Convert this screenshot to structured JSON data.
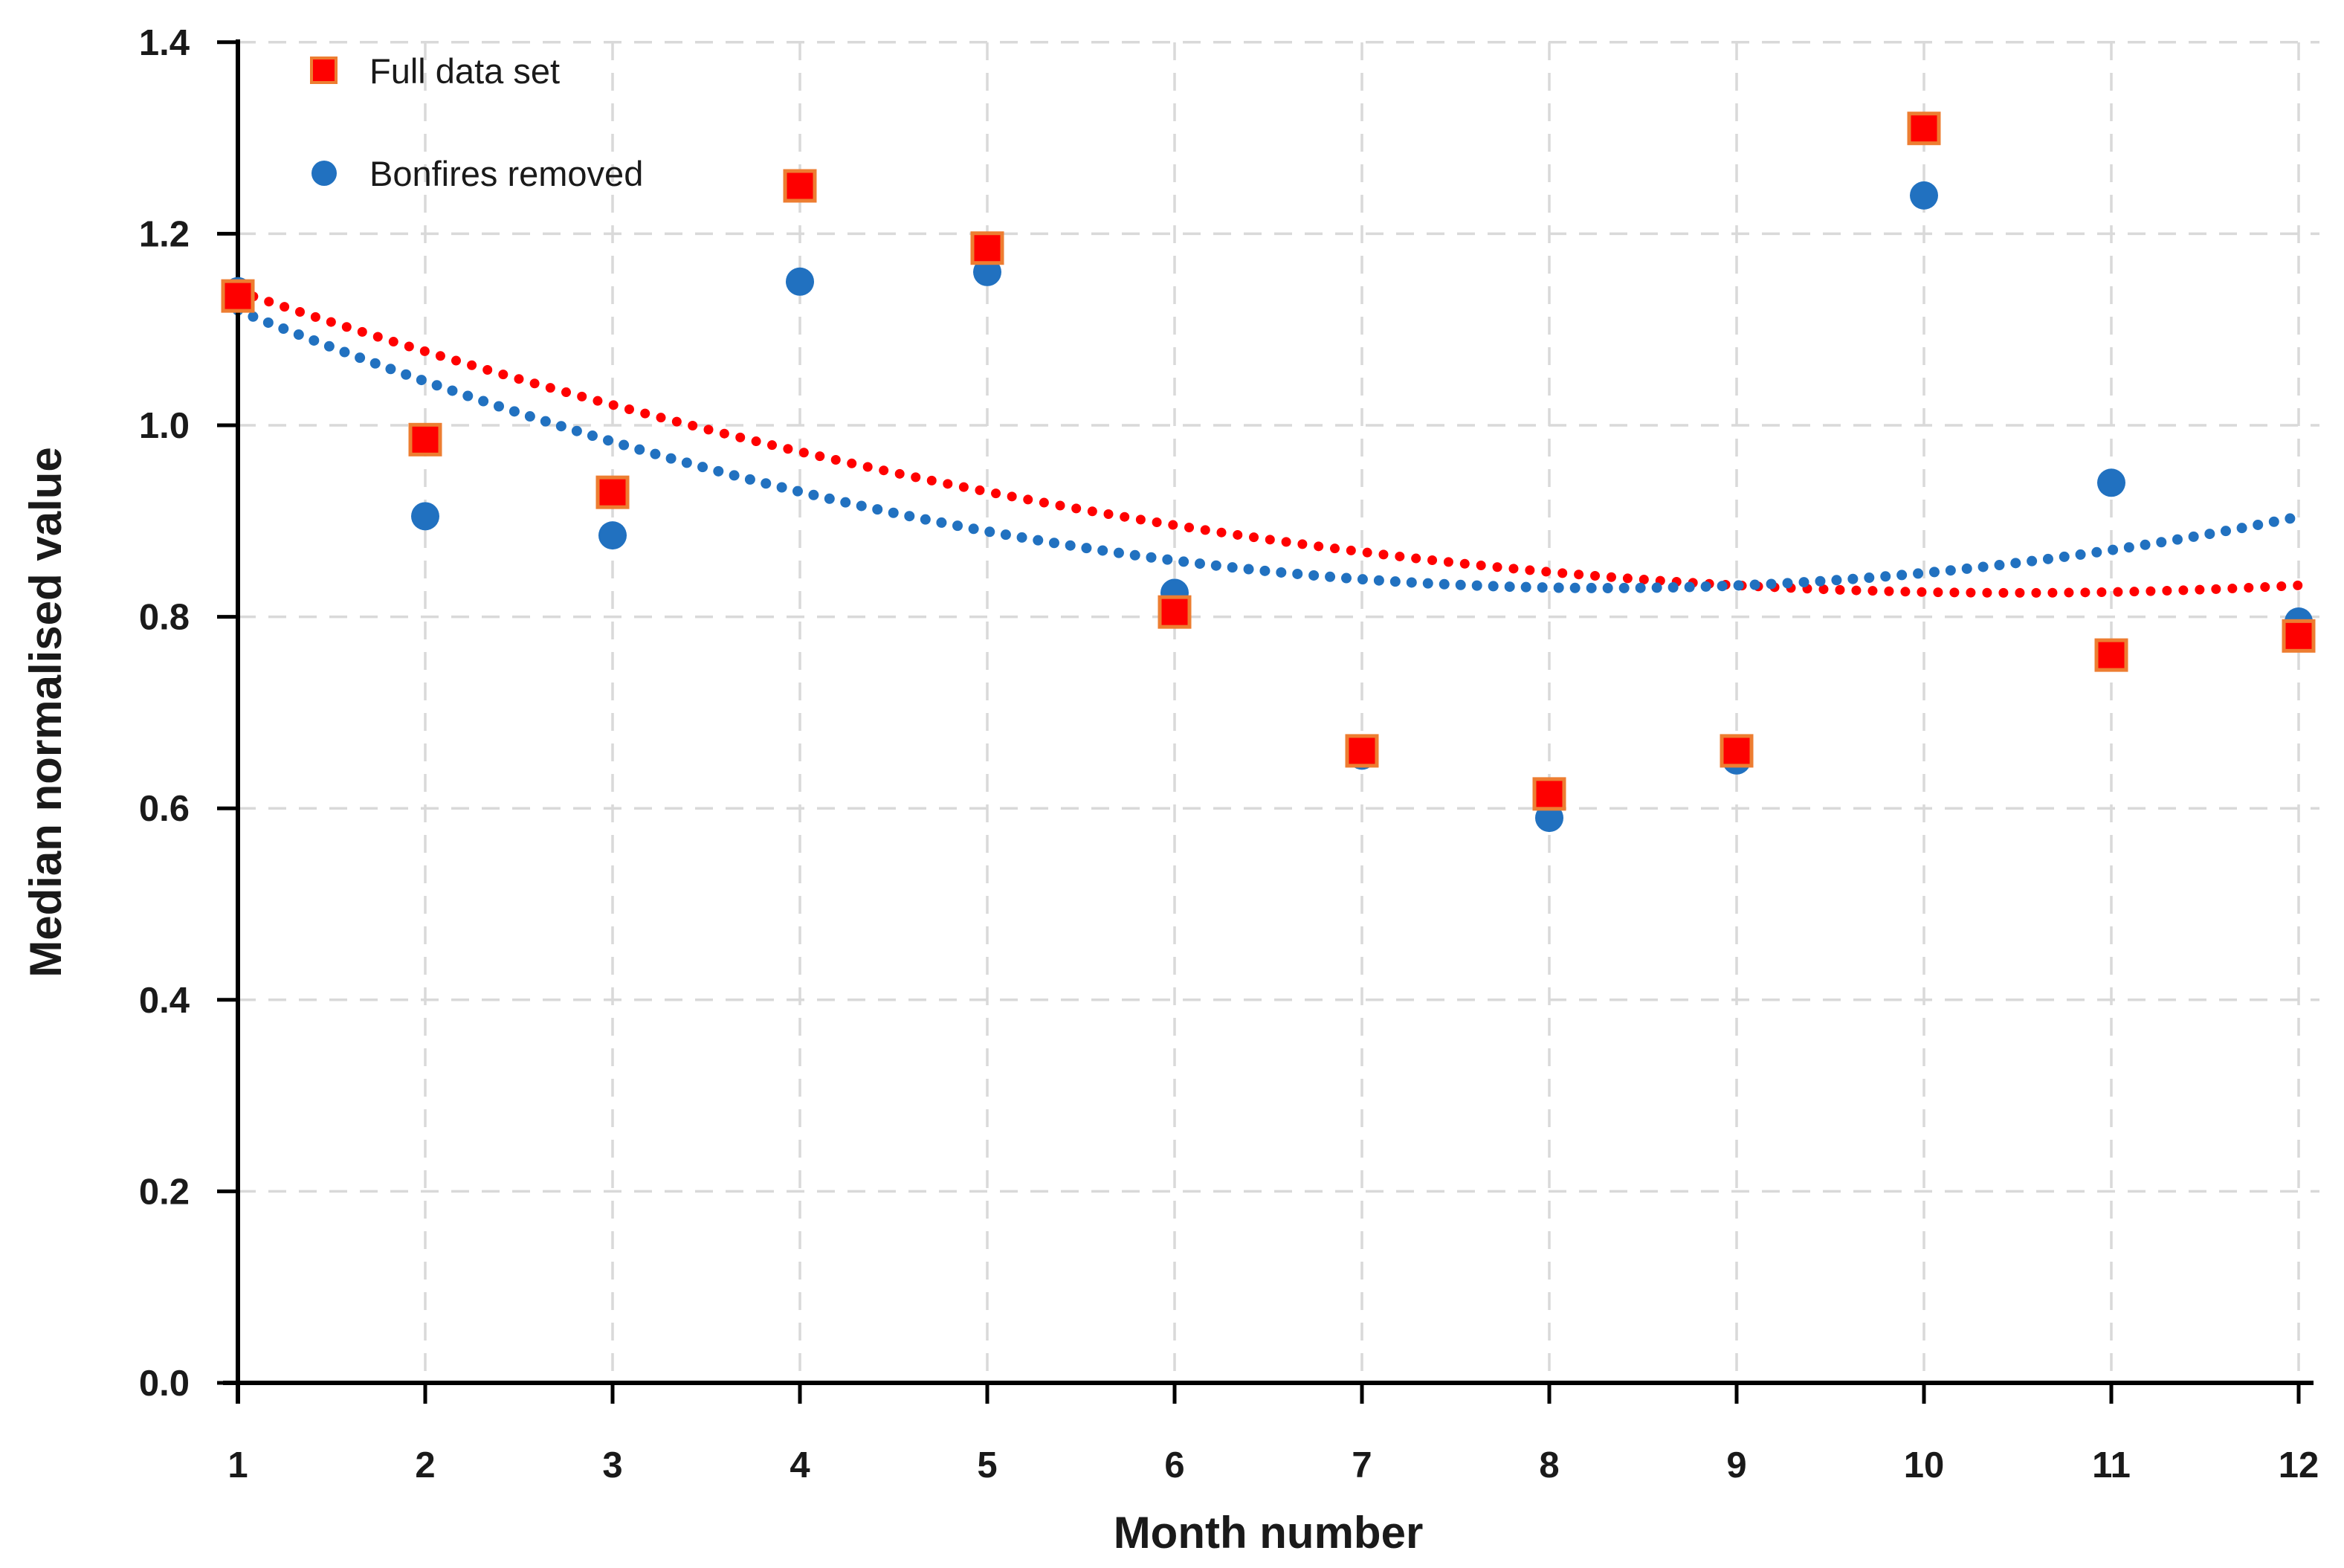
{
  "chart_data": {
    "type": "scatter",
    "title": "",
    "xlabel": "Month number",
    "ylabel": "Median normalised value",
    "x": [
      1,
      2,
      3,
      4,
      5,
      6,
      7,
      8,
      9,
      10,
      11,
      12
    ],
    "xlim": [
      1,
      12
    ],
    "ylim": [
      0.0,
      1.4
    ],
    "x_tick_labels": [
      "1",
      "2",
      "3",
      "4",
      "5",
      "6",
      "7",
      "8",
      "9",
      "10",
      "11",
      "12"
    ],
    "y_tick_values": [
      0.0,
      0.2,
      0.4,
      0.6,
      0.8,
      1.0,
      1.2,
      1.4
    ],
    "y_tick_labels": [
      "0.0",
      "0.2",
      "0.4",
      "0.6",
      "0.8",
      "1.0",
      "1.2",
      "1.4"
    ],
    "grid": true,
    "legend_position": "top-left",
    "series": [
      {
        "name": "Full data set",
        "marker": "square",
        "fill": "#FE0000",
        "stroke": "#ED7D31",
        "values": [
          1.135,
          0.985,
          0.93,
          1.25,
          1.185,
          0.805,
          0.66,
          0.615,
          0.66,
          1.31,
          0.76,
          0.78
        ]
      },
      {
        "name": "Bonfires removed",
        "marker": "circle",
        "fill": "#2171C0",
        "stroke": "none",
        "values": [
          1.14,
          0.905,
          0.885,
          1.15,
          1.16,
          0.825,
          0.655,
          0.59,
          0.65,
          1.24,
          0.94,
          0.795
        ]
      }
    ],
    "trendlines": [
      {
        "for": "Full data set",
        "type": "polynomial_order2",
        "style": "dotted",
        "color": "#FF0000",
        "a": 0.00349,
        "vertex_x": 10.5,
        "vertex_y": 0.825
      },
      {
        "for": "Bonfires removed",
        "type": "polynomial_order2",
        "style": "dotted",
        "color": "#2171C0",
        "a": 0.00544,
        "vertex_x": 8.3,
        "vertex_y": 0.83
      }
    ],
    "colors": {
      "grid": "#D9D9D9",
      "axis": "#000000",
      "text": "#1A1A1A"
    }
  }
}
